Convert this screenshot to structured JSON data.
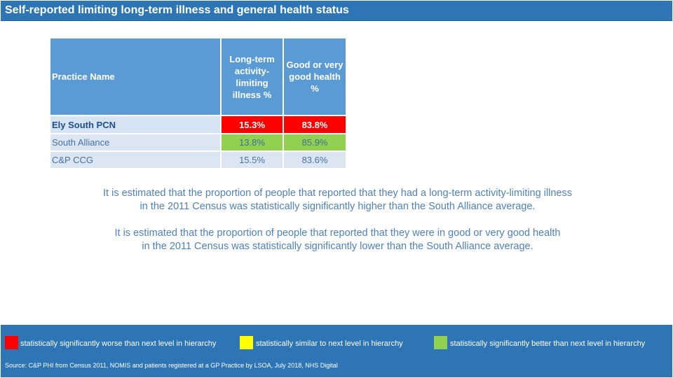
{
  "title": "Self-reported limiting long-term illness and general health status",
  "table": {
    "headers": {
      "name": "Practice Name",
      "col1": "Long-term\nactivity-\nlimiting\nillness %",
      "col2": "Good or very\ngood health\n%"
    },
    "rows": [
      {
        "name": "Ely South PCN",
        "col1": "15.3%",
        "col2": "83.8%",
        "col1_status": "worse",
        "col2_status": "worse"
      },
      {
        "name": "South Alliance",
        "col1": "13.8%",
        "col2": "85.9%",
        "col1_status": "better",
        "col2_status": "better"
      },
      {
        "name": "C&P CCG",
        "col1": "15.5%",
        "col2": "83.6%",
        "col1_status": "none",
        "col2_status": "none"
      }
    ]
  },
  "narrative": {
    "p1": "It is estimated that the proportion of people that reported that they had a long-term activity-limiting illness\nin the 2011 Census was statistically significantly higher than the South Alliance average.",
    "p2": "It is estimated that the proportion of people that reported that they were in good or very good health\nin the 2011 Census was statistically significantly lower than the South Alliance average."
  },
  "key": [
    {
      "label": "statistically significantly worse than next level in hierarchy",
      "color": "#ff0000"
    },
    {
      "label": "statistically similar to next level in hierarchy",
      "color": "#ffff00"
    },
    {
      "label": "statistically significantly better than next level in hierarchy",
      "color": "#92d050"
    }
  ],
  "source": "Source: C&P PHI from Census 2011, NOMIS and patients registered at a GP Practice by LSOA, July 2018, NHS Digital"
}
